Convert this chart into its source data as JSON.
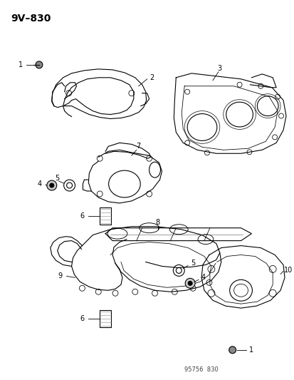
{
  "title": "9V–830",
  "footer": "95756  830",
  "background_color": "#ffffff",
  "line_color": "#000000",
  "fig_width": 4.14,
  "fig_height": 5.33,
  "dpi": 100
}
